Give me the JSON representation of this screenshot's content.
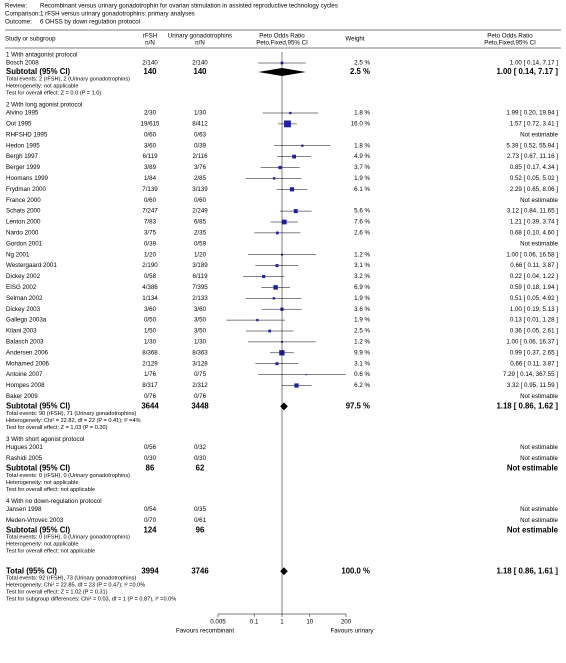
{
  "header": {
    "lines": [
      {
        "label": "Review:",
        "text": "Recombinant versus urinary gonadotrophin for ovarian stimulation in assisted reproductive technology cycles"
      },
      {
        "label": "Comparison:",
        "text": "1 rFSH versus urinary gonadotrophins: primary analyses"
      },
      {
        "label": "Outcome:",
        "text": "6 OHSS by down regulation protocol"
      }
    ]
  },
  "columns": {
    "study": "Study or subgroup",
    "rfsh": "rFSH",
    "rfsh_unit": "n/N",
    "ugn": "Urinary gonadotrophins",
    "ugn_unit": "n/N",
    "plot_title": "Peto Odds Ratio",
    "plot_sub": "Peto,Fixed,95% CI",
    "weight": "Weight",
    "effect_title": "Peto Odds Ratio",
    "effect_sub": "Peto,Fixed,95% CI"
  },
  "chart_data": {
    "type": "forest",
    "log_scale": true,
    "xlim": [
      0.005,
      200
    ],
    "xticks": [
      0.005,
      0.1,
      1,
      10,
      200
    ],
    "left_label": "Favours recombinant",
    "right_label": "Favours urinary",
    "square_color": "#1f1fa8",
    "groups": [
      {
        "title": "1 With antagonist protocol",
        "studies": [
          {
            "name": "Bosch 2008",
            "rfsh": "2/140",
            "ugn": "2/140",
            "weight": 2.5,
            "weight_label": "2.5 %",
            "or": 1.0,
            "ci_low": 0.14,
            "ci_high": 7.17,
            "effect_label": "1.00 [ 0.14, 7.17 ]"
          }
        ],
        "subtotal": {
          "label": "Subtotal (95% CI)",
          "rfsh": 140,
          "ugn": 140,
          "weight": "2.5 %",
          "or": 1.0,
          "ci_low": 0.14,
          "ci_high": 7.17,
          "effect_label": "1.00 [ 0.14, 7.17 ]"
        },
        "notes": [
          "Total events: 2 (rFSH), 2 (Urinary gonadotrophins)",
          "Heterogeneity: not applicable",
          "Test for overall effect: Z = 0.0 (P = 1.0)"
        ]
      },
      {
        "title": "2 With long agonist protocol",
        "studies": [
          {
            "name": "Alvino 1995",
            "rfsh": "2/30",
            "ugn": "1/30",
            "weight": 1.8,
            "weight_label": "1.8 %",
            "or": 1.99,
            "ci_low": 0.2,
            "ci_high": 19.94,
            "effect_label": "1.99 [ 0.20, 19.94 ]"
          },
          {
            "name": "Out 1995",
            "rfsh": "19/615",
            "ugn": "8/412",
            "weight": 16.0,
            "weight_label": "16.0 %",
            "or": 1.57,
            "ci_low": 0.72,
            "ci_high": 3.41,
            "effect_label": "1.57 [ 0.72, 3.41 ]"
          },
          {
            "name": "RHFSHD 1995",
            "rfsh": "0/60",
            "ugn": "0/63",
            "weight": null,
            "weight_label": null,
            "or": null,
            "ci_low": null,
            "ci_high": null,
            "effect_label": "Not estimable"
          },
          {
            "name": "Hedon 1995",
            "rfsh": "3/60",
            "ugn": "0/39",
            "weight": 1.8,
            "weight_label": "1.8 %",
            "or": 5.39,
            "ci_low": 0.52,
            "ci_high": 55.94,
            "effect_label": "5.39 [ 0.52, 55.94 ]"
          },
          {
            "name": "Bergh 1997",
            "rfsh": "6/119",
            "ugn": "2/116",
            "weight": 4.9,
            "weight_label": "4.9 %",
            "or": 2.73,
            "ci_low": 0.67,
            "ci_high": 11.16,
            "effect_label": "2.73 [ 0.67, 11.16 ]"
          },
          {
            "name": "Berger 1999",
            "rfsh": "3/89",
            "ugn": "3/76",
            "weight": 3.7,
            "weight_label": "3.7 %",
            "or": 0.85,
            "ci_low": 0.17,
            "ci_high": 4.34,
            "effect_label": "0.85 [ 0.17, 4.34 ]"
          },
          {
            "name": "Hoomans 1999",
            "rfsh": "1/84",
            "ugn": "2/85",
            "weight": 1.9,
            "weight_label": "1.9 %",
            "or": 0.52,
            "ci_low": 0.05,
            "ci_high": 5.02,
            "effect_label": "0.52 [ 0.05, 5.02 ]"
          },
          {
            "name": "Frydman 2000",
            "rfsh": "7/139",
            "ugn": "3/139",
            "weight": 6.1,
            "weight_label": "6.1 %",
            "or": 2.29,
            "ci_low": 0.65,
            "ci_high": 8.06,
            "effect_label": "2.29 [ 0.65, 8.06 ]"
          },
          {
            "name": "France 2000",
            "rfsh": "0/60",
            "ugn": "0/60",
            "weight": null,
            "weight_label": null,
            "or": null,
            "ci_low": null,
            "ci_high": null,
            "effect_label": "Not estimable"
          },
          {
            "name": "Schats 2000",
            "rfsh": "7/247",
            "ugn": "2/249",
            "weight": 5.6,
            "weight_label": "5.6 %",
            "or": 3.12,
            "ci_low": 0.84,
            "ci_high": 11.65,
            "effect_label": "3.12 [ 0.84, 11.65 ]"
          },
          {
            "name": "Lenton 2000",
            "rfsh": "7/83",
            "ugn": "6/85",
            "weight": 7.6,
            "weight_label": "7.6 %",
            "or": 1.21,
            "ci_low": 0.39,
            "ci_high": 3.74,
            "effect_label": "1.21 [ 0.39, 3.74 ]"
          },
          {
            "name": "Nardo 2000",
            "rfsh": "3/75",
            "ugn": "2/35",
            "weight": 2.6,
            "weight_label": "2.6 %",
            "or": 0.68,
            "ci_low": 0.1,
            "ci_high": 4.6,
            "effect_label": "0.68 [ 0.10, 4.60 ]"
          },
          {
            "name": "Gordon 2001",
            "rfsh": "0/39",
            "ugn": "0/59",
            "weight": null,
            "weight_label": null,
            "or": null,
            "ci_low": null,
            "ci_high": null,
            "effect_label": "Not estimable"
          },
          {
            "name": "Ng 2001",
            "rfsh": "1/20",
            "ugn": "1/20",
            "weight": 1.2,
            "weight_label": "1.2 %",
            "or": 1.0,
            "ci_low": 0.06,
            "ci_high": 16.58,
            "effect_label": "1.00 [ 0.06, 16.58 ]"
          },
          {
            "name": "Westergaard 2001",
            "rfsh": "2/190",
            "ugn": "3/189",
            "weight": 3.1,
            "weight_label": "3.1 %",
            "or": 0.66,
            "ci_low": 0.11,
            "ci_high": 3.87,
            "effect_label": "0.66 [ 0.11, 3.87 ]"
          },
          {
            "name": "Dickey 2002",
            "rfsh": "0/58",
            "ugn": "6/119",
            "weight": 3.2,
            "weight_label": "3.2 %",
            "or": 0.22,
            "ci_low": 0.04,
            "ci_high": 1.22,
            "effect_label": "0.22 [ 0.04, 1.22 ]"
          },
          {
            "name": "EISG 2002",
            "rfsh": "4/386",
            "ugn": "7/395",
            "weight": 6.9,
            "weight_label": "6.9 %",
            "or": 0.59,
            "ci_low": 0.18,
            "ci_high": 1.94,
            "effect_label": "0.59 [ 0.18, 1.94 ]"
          },
          {
            "name": "Selman 2002",
            "rfsh": "1/134",
            "ugn": "2/133",
            "weight": 1.9,
            "weight_label": "1.9 %",
            "or": 0.51,
            "ci_low": 0.05,
            "ci_high": 4.92,
            "effect_label": "0.51 [ 0.05, 4.92 ]"
          },
          {
            "name": "Dickey 2003",
            "rfsh": "3/60",
            "ugn": "3/60",
            "weight": 3.6,
            "weight_label": "3.6 %",
            "or": 1.0,
            "ci_low": 0.19,
            "ci_high": 5.13,
            "effect_label": "1.00 [ 0.19, 5.13 ]"
          },
          {
            "name": "Gallego 2003a",
            "rfsh": "0/50",
            "ugn": "3/50",
            "weight": 1.9,
            "weight_label": "1.9 %",
            "or": 0.13,
            "ci_low": 0.01,
            "ci_high": 1.28,
            "effect_label": "0.13 [ 0.01, 1.28 ]"
          },
          {
            "name": "Kilani 2003",
            "rfsh": "1/50",
            "ugn": "3/50",
            "weight": 2.5,
            "weight_label": "2.5 %",
            "or": 0.36,
            "ci_low": 0.05,
            "ci_high": 2.61,
            "effect_label": "0.36 [ 0.05, 2.61 ]"
          },
          {
            "name": "Balasch 2003",
            "rfsh": "1/30",
            "ugn": "1/30",
            "weight": 1.2,
            "weight_label": "1.2 %",
            "or": 1.0,
            "ci_low": 0.06,
            "ci_high": 16.37,
            "effect_label": "1.00 [ 0.06, 16.37 ]"
          },
          {
            "name": "Andersen 2006",
            "rfsh": "8/368",
            "ugn": "8/363",
            "weight": 9.9,
            "weight_label": "9.9 %",
            "or": 0.99,
            "ci_low": 0.37,
            "ci_high": 2.65,
            "effect_label": "0.99 [ 0.37, 2.65 ]"
          },
          {
            "name": "Mohamed 2006",
            "rfsh": "2/129",
            "ugn": "3/128",
            "weight": 3.1,
            "weight_label": "3.1 %",
            "or": 0.66,
            "ci_low": 0.11,
            "ci_high": 3.87,
            "effect_label": "0.66 [ 0.11, 3.87 ]"
          },
          {
            "name": "Antoine 2007",
            "rfsh": "1/76",
            "ugn": "0/75",
            "weight": 0.6,
            "weight_label": "0.6 %",
            "or": 7.29,
            "ci_low": 0.14,
            "ci_high": 367.55,
            "effect_label": "7.29 [ 0.14, 367.55 ]"
          },
          {
            "name": "Hompes 2008",
            "rfsh": "8/317",
            "ugn": "2/312",
            "weight": 6.2,
            "weight_label": "6.2 %",
            "or": 3.32,
            "ci_low": 0.95,
            "ci_high": 11.59,
            "effect_label": "3.32 [ 0.95, 11.59 ]"
          },
          {
            "name": "Baker 2009",
            "rfsh": "0/76",
            "ugn": "0/76",
            "weight": null,
            "weight_label": null,
            "or": null,
            "ci_low": null,
            "ci_high": null,
            "effect_label": "Not estimable"
          }
        ],
        "subtotal": {
          "label": "Subtotal (95% CI)",
          "rfsh": 3644,
          "ugn": 3448,
          "weight": "97.5 %",
          "or": 1.18,
          "ci_low": 0.86,
          "ci_high": 1.62,
          "effect_label": "1.18 [ 0.86, 1.62 ]"
        },
        "notes": [
          "Total events: 90 (rFSH), 71 (Urinary gonadotrophins)",
          "Heterogeneity: Chi² = 22.82, df = 22 (P = 0.41); I² =4%",
          "Test for overall effect: Z = 1.03 (P = 0.30)"
        ]
      },
      {
        "title": "3 With short agonist protocol",
        "studies": [
          {
            "name": "Hugues 2001",
            "rfsh": "0/56",
            "ugn": "0/32",
            "weight": null,
            "weight_label": null,
            "or": null,
            "ci_low": null,
            "ci_high": null,
            "effect_label": "Not estimable"
          },
          {
            "name": "Rashidi 2005",
            "rfsh": "0/30",
            "ugn": "0/30",
            "weight": null,
            "weight_label": null,
            "or": null,
            "ci_low": null,
            "ci_high": null,
            "effect_label": "Not estimable"
          }
        ],
        "subtotal": {
          "label": "Subtotal (95% CI)",
          "rfsh": 86,
          "ugn": 62,
          "weight": null,
          "or": null,
          "ci_low": null,
          "ci_high": null,
          "effect_label": "Not estimable"
        },
        "notes": [
          "Total events: 0 (rFSH), 0 (Urinary gonadotrophins)",
          "Heterogeneity: not applicable",
          "Test for overall effect: not applicable"
        ]
      },
      {
        "title": "4 With no down-regulation protocol",
        "studies": [
          {
            "name": "Jansen 1998",
            "rfsh": "0/54",
            "ugn": "0/35",
            "weight": null,
            "weight_label": null,
            "or": null,
            "ci_low": null,
            "ci_high": null,
            "effect_label": "Not estimable"
          },
          {
            "name": "Meden-Vrtovec 2003",
            "rfsh": "0/70",
            "ugn": "0/61",
            "weight": null,
            "weight_label": null,
            "or": null,
            "ci_low": null,
            "ci_high": null,
            "effect_label": "Not estimable"
          }
        ],
        "subtotal": {
          "label": "Subtotal (95% CI)",
          "rfsh": 124,
          "ugn": 96,
          "weight": null,
          "or": null,
          "ci_low": null,
          "ci_high": null,
          "effect_label": "Not estimable"
        },
        "notes": [
          "Total events: 0 (rFSH), 0 (Urinary gonadotrophins)",
          "Heterogeneity: not applicable",
          "Test for overall effect: not applicable"
        ]
      }
    ],
    "total": {
      "label": "Total (95% CI)",
      "rfsh": 3994,
      "ugn": 3746,
      "weight": "100.0 %",
      "or": 1.18,
      "ci_low": 0.86,
      "ci_high": 1.61,
      "effect_label": "1.18 [ 0.86, 1.61 ]",
      "notes": [
        "Total events: 92 (rFSH), 73 (Urinary gonadotrophins)",
        "Heterogeneity: Chi² = 22.85, df = 23 (P = 0.47); I² =0.0%",
        "Test for overall effect: Z = 1.02 (P = 0.31)",
        "Test for subgroup differences: Chi² = 0.03, df = 1 (P = 0.87), I² =0.0%"
      ]
    }
  }
}
